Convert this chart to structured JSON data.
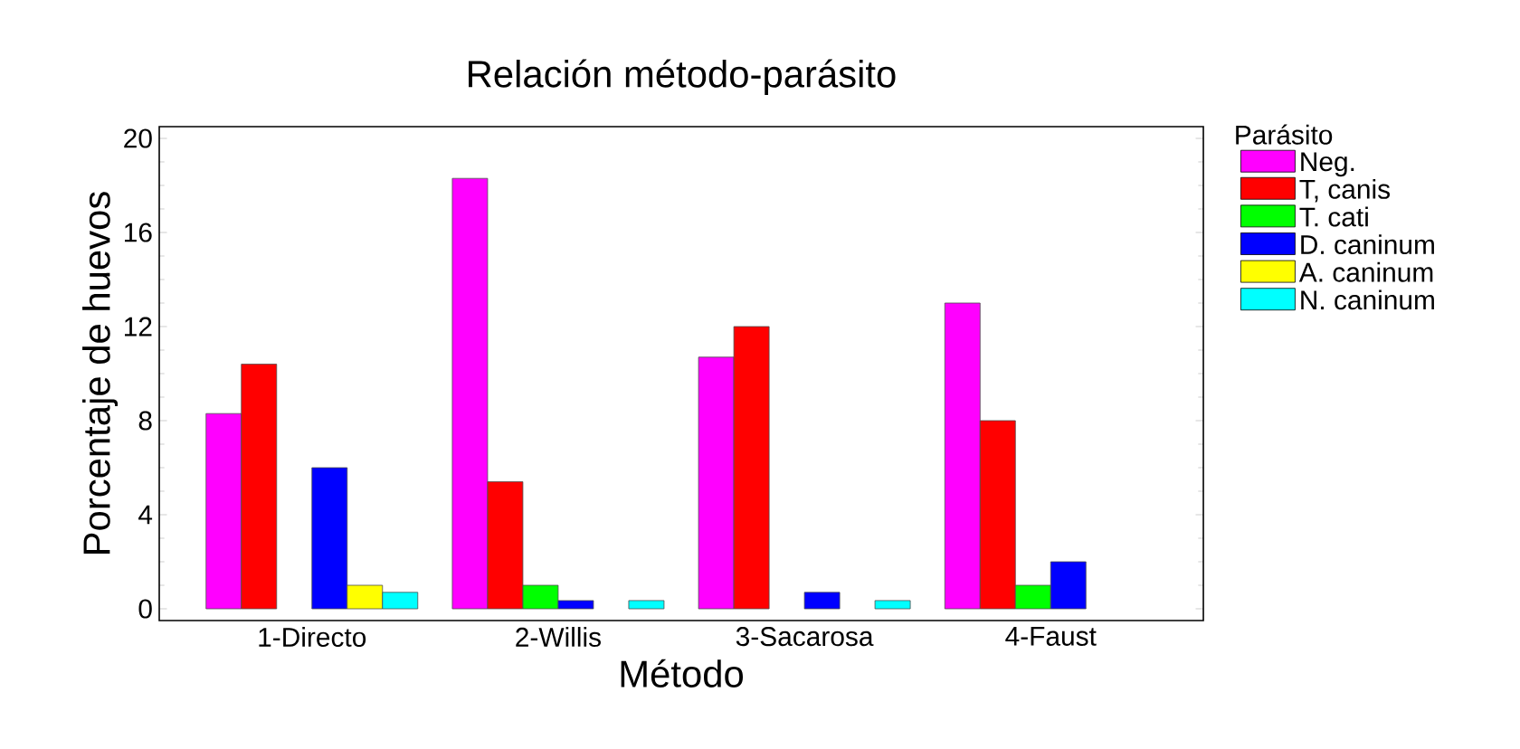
{
  "chart_data": {
    "type": "bar",
    "title": "Relación método-parásito",
    "xlabel": "Método",
    "ylabel": "Porcentaje de huevos",
    "legend_title": "Parásito",
    "legend": "right",
    "categories": [
      "1-Directo",
      "2-Willis",
      "3-Sacarosa",
      "4-Faust"
    ],
    "ylim": [
      -0.5,
      20.5
    ],
    "yticks": [
      0,
      4,
      8,
      12,
      16,
      20
    ],
    "grid": false,
    "series": [
      {
        "name": "Neg.",
        "color": "#ff00ff",
        "values": [
          8.3,
          18.3,
          10.7,
          13.0
        ]
      },
      {
        "name": "T, canis",
        "color": "#ff0000",
        "values": [
          10.4,
          5.4,
          12.0,
          8.0
        ]
      },
      {
        "name": "T. cati",
        "color": "#00ff00",
        "values": [
          0,
          1.0,
          0,
          1.0
        ]
      },
      {
        "name": "D. caninum",
        "color": "#0000ff",
        "values": [
          6.0,
          0.35,
          0.7,
          2.0
        ]
      },
      {
        "name": "A. caninum",
        "color": "#ffff00",
        "values": [
          1.0,
          0,
          0,
          0
        ]
      },
      {
        "name": "N. caninum",
        "color": "#00ffff",
        "values": [
          0.7,
          0.35,
          0.35,
          0
        ]
      }
    ]
  }
}
